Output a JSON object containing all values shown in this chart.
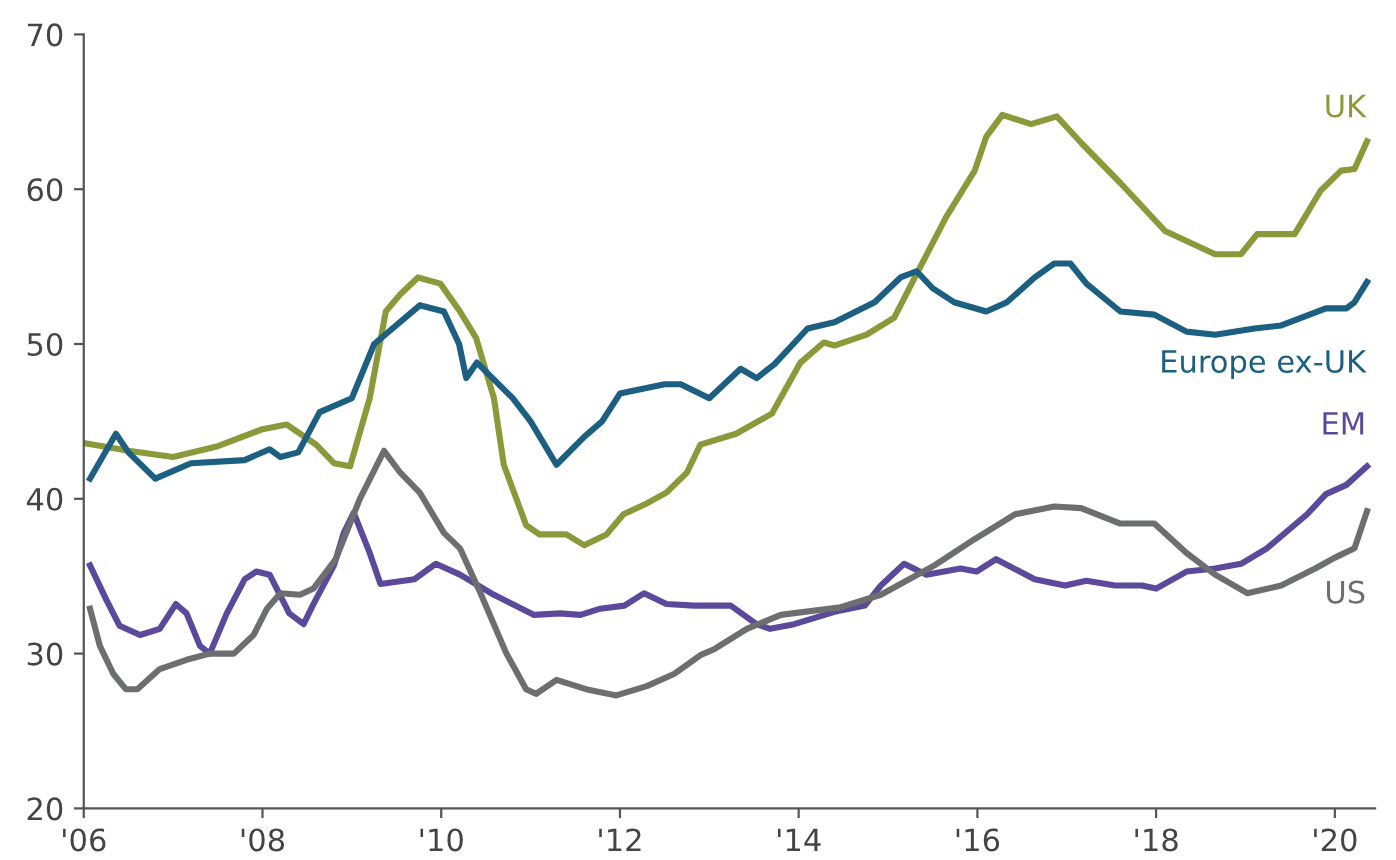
{
  "chart_data": {
    "type": "line",
    "xlim": [
      2006,
      2020.45
    ],
    "ylim": [
      20,
      70
    ],
    "xticks": [
      {
        "value": 2006,
        "label": "'06"
      },
      {
        "value": 2008,
        "label": "'08"
      },
      {
        "value": 2010,
        "label": "'10"
      },
      {
        "value": 2012,
        "label": "'12"
      },
      {
        "value": 2014,
        "label": "'14"
      },
      {
        "value": 2016,
        "label": "'16"
      },
      {
        "value": 2018,
        "label": "'18"
      },
      {
        "value": 2020,
        "label": "'20"
      }
    ],
    "yticks": [
      20,
      30,
      40,
      50,
      60,
      70
    ],
    "grid": false,
    "legend": false,
    "marker": "none",
    "line_style": "solid",
    "series": [
      {
        "name": "UK",
        "color": "#8a9a3b",
        "x": [
          2006.0,
          2006.5,
          2007.0,
          2007.5,
          2008.0,
          2008.27,
          2008.6,
          2008.8,
          2008.98,
          2009.2,
          2009.38,
          2009.54,
          2009.74,
          2009.99,
          2010.21,
          2010.39,
          2010.59,
          2010.7,
          2010.95,
          2011.1,
          2011.4,
          2011.6,
          2011.85,
          2012.04,
          2012.3,
          2012.52,
          2012.75,
          2012.9,
          2013.3,
          2013.7,
          2014.02,
          2014.28,
          2014.4,
          2014.76,
          2015.07,
          2015.3,
          2015.65,
          2015.97,
          2016.1,
          2016.28,
          2016.6,
          2016.89,
          2017.16,
          2017.6,
          2018.1,
          2018.66,
          2018.95,
          2019.13,
          2019.55,
          2019.84,
          2020.07,
          2020.22,
          2020.36
        ],
        "values": [
          43.6,
          43.1,
          42.7,
          43.4,
          44.5,
          44.8,
          43.5,
          42.3,
          42.1,
          46.5,
          52.1,
          53.2,
          54.3,
          53.9,
          52.1,
          50.4,
          46.5,
          42.2,
          38.3,
          37.7,
          37.7,
          37.0,
          37.7,
          39.0,
          39.7,
          40.4,
          41.7,
          43.5,
          44.2,
          45.5,
          48.8,
          50.1,
          49.9,
          50.6,
          51.7,
          54.3,
          58.2,
          61.2,
          63.4,
          64.8,
          64.2,
          64.7,
          63.0,
          60.4,
          57.3,
          55.8,
          55.8,
          57.1,
          57.1,
          59.9,
          61.2,
          61.3,
          63.1
        ]
      },
      {
        "name": "Europe ex-UK",
        "color": "#1d5f80",
        "x": [
          2006.07,
          2006.36,
          2006.5,
          2006.8,
          2007.2,
          2007.8,
          2008.08,
          2008.2,
          2008.4,
          2008.64,
          2009.0,
          2009.25,
          2009.76,
          2010.03,
          2010.2,
          2010.28,
          2010.4,
          2010.8,
          2011.0,
          2011.29,
          2011.6,
          2011.8,
          2012.0,
          2012.5,
          2012.68,
          2013.0,
          2013.35,
          2013.53,
          2013.73,
          2014.1,
          2014.4,
          2014.85,
          2015.14,
          2015.32,
          2015.5,
          2015.74,
          2016.1,
          2016.33,
          2016.64,
          2016.86,
          2017.04,
          2017.22,
          2017.6,
          2017.98,
          2018.34,
          2018.66,
          2019.1,
          2019.4,
          2019.9,
          2020.13,
          2020.22,
          2020.36
        ],
        "values": [
          41.3,
          44.2,
          43.0,
          41.3,
          42.3,
          42.5,
          43.2,
          42.7,
          43.0,
          45.6,
          46.5,
          50.0,
          52.5,
          52.1,
          50.0,
          47.8,
          48.8,
          46.5,
          45.0,
          42.2,
          44.0,
          45.0,
          46.8,
          47.4,
          47.4,
          46.5,
          48.4,
          47.8,
          48.7,
          51.0,
          51.4,
          52.7,
          54.3,
          54.7,
          53.6,
          52.7,
          52.1,
          52.7,
          54.3,
          55.2,
          55.2,
          53.9,
          52.1,
          51.9,
          50.8,
          50.6,
          51.0,
          51.2,
          52.3,
          52.3,
          52.7,
          54.0
        ]
      },
      {
        "name": "EM",
        "color": "#5b4a9b",
        "x": [
          2006.07,
          2006.25,
          2006.4,
          2006.63,
          2006.85,
          2007.03,
          2007.15,
          2007.3,
          2007.41,
          2007.6,
          2007.8,
          2007.93,
          2008.08,
          2008.3,
          2008.46,
          2008.57,
          2008.8,
          2008.91,
          2009.02,
          2009.2,
          2009.32,
          2009.7,
          2009.94,
          2010.21,
          2010.59,
          2011.04,
          2011.33,
          2011.56,
          2011.78,
          2012.05,
          2012.27,
          2012.52,
          2012.83,
          2013.24,
          2013.53,
          2013.68,
          2013.95,
          2014.4,
          2014.74,
          2014.92,
          2015.18,
          2015.43,
          2015.81,
          2015.99,
          2016.21,
          2016.64,
          2016.98,
          2017.22,
          2017.54,
          2017.84,
          2018.0,
          2018.34,
          2018.66,
          2018.95,
          2019.24,
          2019.69,
          2019.9,
          2020.13,
          2020.36
        ],
        "values": [
          35.7,
          33.5,
          31.8,
          31.2,
          31.6,
          33.2,
          32.6,
          30.5,
          30.0,
          32.6,
          34.8,
          35.3,
          35.1,
          32.6,
          31.9,
          33.2,
          35.7,
          37.8,
          39.1,
          36.5,
          34.5,
          34.8,
          35.8,
          35.1,
          33.8,
          32.5,
          32.6,
          32.5,
          32.9,
          33.1,
          33.9,
          33.2,
          33.1,
          33.1,
          31.9,
          31.6,
          31.9,
          32.7,
          33.1,
          34.4,
          35.8,
          35.1,
          35.5,
          35.3,
          36.1,
          34.8,
          34.4,
          34.7,
          34.4,
          34.4,
          34.2,
          35.3,
          35.5,
          35.8,
          36.8,
          39.0,
          40.3,
          40.9,
          42.1
        ]
      },
      {
        "name": "US",
        "color": "#6d6e70",
        "x": [
          2006.07,
          2006.18,
          2006.33,
          2006.47,
          2006.6,
          2006.85,
          2007.15,
          2007.41,
          2007.68,
          2007.9,
          2008.05,
          2008.2,
          2008.42,
          2008.57,
          2008.82,
          2009.09,
          2009.36,
          2009.54,
          2009.76,
          2010.03,
          2010.21,
          2010.44,
          2010.73,
          2010.95,
          2011.06,
          2011.29,
          2011.62,
          2011.96,
          2012.3,
          2012.61,
          2012.9,
          2013.06,
          2013.42,
          2013.8,
          2014.47,
          2014.92,
          2015.52,
          2015.97,
          2016.42,
          2016.86,
          2017.16,
          2017.6,
          2017.98,
          2018.34,
          2018.66,
          2019.02,
          2019.4,
          2019.78,
          2020.0,
          2020.22,
          2020.36
        ],
        "values": [
          32.9,
          30.5,
          28.7,
          27.7,
          27.7,
          29.0,
          29.6,
          30.0,
          30.0,
          31.2,
          32.9,
          33.9,
          33.8,
          34.2,
          36.1,
          40.0,
          43.1,
          41.7,
          40.4,
          37.8,
          36.8,
          33.9,
          30.0,
          27.7,
          27.4,
          28.3,
          27.7,
          27.3,
          27.9,
          28.7,
          29.9,
          30.3,
          31.6,
          32.5,
          33.0,
          33.8,
          35.7,
          37.4,
          39.0,
          39.5,
          39.4,
          38.4,
          38.4,
          36.5,
          35.1,
          33.9,
          34.4,
          35.5,
          36.2,
          36.8,
          39.2
        ]
      }
    ]
  }
}
